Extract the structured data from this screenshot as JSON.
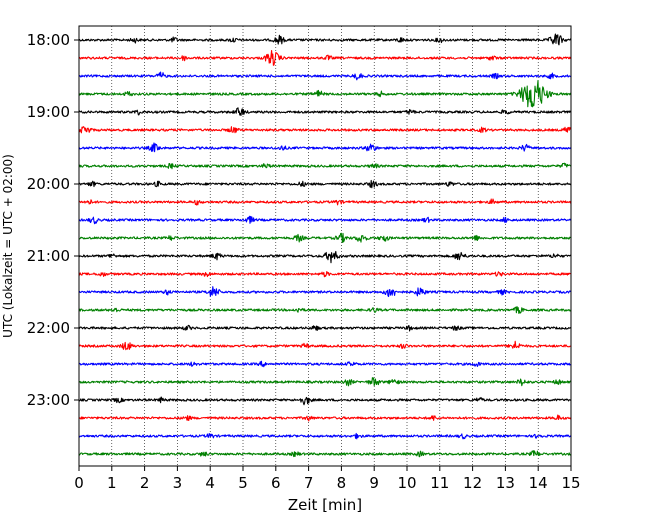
{
  "chart_data": {
    "type": "line",
    "title": "",
    "xlabel": "Zeit  [min]",
    "ylabel": "UTC (Lokalzeit = UTC + 02:00)",
    "xlim": [
      0,
      15
    ],
    "x_ticks": [
      0,
      1,
      2,
      3,
      4,
      5,
      6,
      7,
      8,
      9,
      10,
      11,
      12,
      13,
      14,
      15
    ],
    "y_tick_labels": [
      "18:00",
      "19:00",
      "20:00",
      "21:00",
      "22:00",
      "23:00"
    ],
    "vertical_grid": true,
    "trace_colors": [
      "#000000",
      "#ff0000",
      "#0000ff",
      "#008000"
    ],
    "series": [
      {
        "start": "18:00",
        "color": "#000000",
        "events": [
          [
            6.1,
            4
          ],
          [
            14.55,
            6
          ],
          [
            1.7,
            2
          ],
          [
            2.9,
            2
          ],
          [
            4.7,
            2
          ],
          [
            9.8,
            2
          ],
          [
            11.0,
            2
          ]
        ]
      },
      {
        "start": "18:15",
        "color": "#ff0000",
        "events": [
          [
            5.9,
            7
          ],
          [
            3.2,
            2
          ],
          [
            7.6,
            2
          ],
          [
            12.6,
            2
          ]
        ]
      },
      {
        "start": "18:30",
        "color": "#0000ff",
        "events": [
          [
            2.5,
            3
          ],
          [
            8.5,
            3
          ],
          [
            12.7,
            2
          ],
          [
            14.4,
            2
          ]
        ]
      },
      {
        "start": "18:45",
        "color": "#008000",
        "events": [
          [
            13.85,
            16
          ],
          [
            7.3,
            3
          ],
          [
            1.5,
            2
          ],
          [
            9.2,
            2
          ]
        ]
      },
      {
        "start": "19:00",
        "color": "#000000",
        "events": [
          [
            4.9,
            4
          ],
          [
            13.0,
            2
          ],
          [
            1.8,
            2
          ],
          [
            10.1,
            2
          ]
        ]
      },
      {
        "start": "19:15",
        "color": "#ff0000",
        "events": [
          [
            0.2,
            4
          ],
          [
            4.7,
            3
          ],
          [
            12.3,
            2
          ],
          [
            14.9,
            3
          ]
        ]
      },
      {
        "start": "19:30",
        "color": "#0000ff",
        "events": [
          [
            2.3,
            4
          ],
          [
            8.9,
            4
          ],
          [
            13.6,
            3
          ],
          [
            6.2,
            2
          ]
        ]
      },
      {
        "start": "19:45",
        "color": "#008000",
        "events": [
          [
            2.8,
            2
          ],
          [
            5.7,
            2
          ],
          [
            9.0,
            2
          ],
          [
            14.8,
            2
          ]
        ]
      },
      {
        "start": "20:00",
        "color": "#000000",
        "events": [
          [
            0.4,
            2
          ],
          [
            2.4,
            2
          ],
          [
            6.8,
            2
          ],
          [
            8.95,
            3
          ],
          [
            11.3,
            2
          ]
        ]
      },
      {
        "start": "20:15",
        "color": "#ff0000",
        "events": [
          [
            0.3,
            2
          ],
          [
            3.6,
            2
          ],
          [
            7.9,
            2
          ],
          [
            12.6,
            2
          ]
        ]
      },
      {
        "start": "20:30",
        "color": "#0000ff",
        "events": [
          [
            0.45,
            3
          ],
          [
            5.2,
            3
          ],
          [
            13.0,
            2
          ],
          [
            10.6,
            2
          ]
        ]
      },
      {
        "start": "20:45",
        "color": "#008000",
        "events": [
          [
            8.0,
            4
          ],
          [
            8.6,
            4
          ],
          [
            9.3,
            3
          ],
          [
            6.7,
            3
          ],
          [
            2.8,
            2
          ],
          [
            12.1,
            2
          ]
        ]
      },
      {
        "start": "21:00",
        "color": "#000000",
        "events": [
          [
            7.7,
            6
          ],
          [
            11.6,
            4
          ],
          [
            4.2,
            3
          ],
          [
            14.5,
            2
          ],
          [
            1.0,
            2
          ]
        ]
      },
      {
        "start": "21:15",
        "color": "#ff0000",
        "events": [
          [
            0.7,
            2
          ],
          [
            3.9,
            2
          ],
          [
            7.5,
            2
          ],
          [
            12.8,
            2
          ]
        ]
      },
      {
        "start": "21:30",
        "color": "#0000ff",
        "events": [
          [
            4.1,
            5
          ],
          [
            9.5,
            5
          ],
          [
            10.4,
            4
          ],
          [
            2.7,
            2
          ],
          [
            12.9,
            2
          ]
        ]
      },
      {
        "start": "21:45",
        "color": "#008000",
        "events": [
          [
            1.1,
            2
          ],
          [
            6.7,
            2
          ],
          [
            13.4,
            3
          ],
          [
            9.0,
            2
          ]
        ]
      },
      {
        "start": "22:00",
        "color": "#000000",
        "events": [
          [
            7.2,
            2
          ],
          [
            11.5,
            2
          ],
          [
            3.3,
            2
          ],
          [
            10.1,
            2
          ]
        ]
      },
      {
        "start": "22:15",
        "color": "#ff0000",
        "events": [
          [
            1.45,
            4
          ],
          [
            13.3,
            4
          ],
          [
            6.9,
            2
          ],
          [
            9.9,
            2
          ]
        ]
      },
      {
        "start": "22:30",
        "color": "#0000ff",
        "events": [
          [
            3.5,
            2
          ],
          [
            8.3,
            2
          ],
          [
            12.1,
            2
          ],
          [
            5.6,
            2
          ]
        ]
      },
      {
        "start": "22:45",
        "color": "#008000",
        "events": [
          [
            8.2,
            3
          ],
          [
            9.0,
            4
          ],
          [
            9.6,
            3
          ],
          [
            13.5,
            3
          ],
          [
            14.6,
            2
          ]
        ]
      },
      {
        "start": "23:00",
        "color": "#000000",
        "events": [
          [
            6.9,
            4
          ],
          [
            1.2,
            2
          ],
          [
            2.5,
            2
          ],
          [
            12.2,
            2
          ]
        ]
      },
      {
        "start": "23:15",
        "color": "#ff0000",
        "events": [
          [
            3.3,
            2
          ],
          [
            7.0,
            2
          ],
          [
            10.8,
            2
          ],
          [
            14.6,
            2
          ]
        ]
      },
      {
        "start": "23:30",
        "color": "#0000ff",
        "events": [
          [
            4.0,
            2
          ],
          [
            8.5,
            2
          ],
          [
            14.0,
            2
          ],
          [
            11.7,
            2
          ]
        ]
      },
      {
        "start": "23:45",
        "color": "#008000",
        "events": [
          [
            3.8,
            2
          ],
          [
            10.4,
            2
          ],
          [
            13.9,
            3
          ],
          [
            6.6,
            2
          ]
        ]
      }
    ]
  }
}
